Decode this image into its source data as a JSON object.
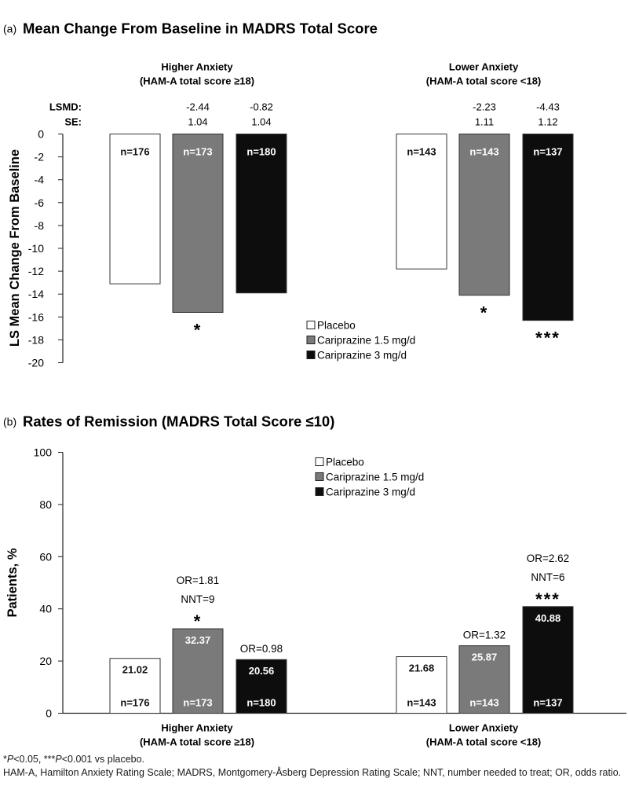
{
  "chart_data": [
    {
      "type": "bar",
      "panel_label": "(a)",
      "title": "Mean Change From Baseline in MADRS Total Score",
      "ylabel": "LS Mean Change From Baseline",
      "xlabel": "",
      "ylim": [
        -20,
        0
      ],
      "yticks": [
        0,
        -2,
        -4,
        -6,
        -8,
        -10,
        -12,
        -14,
        -16,
        -18,
        -20
      ],
      "legend": [
        "Placebo",
        "Cariprazine 1.5 mg/d",
        "Cariprazine 3 mg/d"
      ],
      "row_labels": {
        "lsmd": "LSMD:",
        "se": "SE:"
      },
      "groups": [
        {
          "label_line1": "Higher Anxiety",
          "label_line2": "(HAM-A total score ≥18)",
          "bars": [
            {
              "series": "Placebo",
              "value": -13.1,
              "n": "n=176",
              "sig": ""
            },
            {
              "series": "Cariprazine 1.5 mg/d",
              "value": -15.6,
              "n": "n=173",
              "sig": "*",
              "lsmd": "-2.44",
              "se": "1.04"
            },
            {
              "series": "Cariprazine 3 mg/d",
              "value": -13.9,
              "n": "n=180",
              "sig": "",
              "lsmd": "-0.82",
              "se": "1.04"
            }
          ]
        },
        {
          "label_line1": "Lower Anxiety",
          "label_line2": "(HAM-A total score <18)",
          "bars": [
            {
              "series": "Placebo",
              "value": -11.8,
              "n": "n=143",
              "sig": ""
            },
            {
              "series": "Cariprazine 1.5 mg/d",
              "value": -14.1,
              "n": "n=143",
              "sig": "*",
              "lsmd": "-2.23",
              "se": "1.11"
            },
            {
              "series": "Cariprazine 3 mg/d",
              "value": -16.3,
              "n": "n=137",
              "sig": "***",
              "lsmd": "-4.43",
              "se": "1.12"
            }
          ]
        }
      ]
    },
    {
      "type": "bar",
      "panel_label": "(b)",
      "title": "Rates of Remission (MADRS Total Score ≤10)",
      "ylabel": "Patients, %",
      "xlabel": "",
      "ylim": [
        0,
        100
      ],
      "yticks": [
        0,
        20,
        40,
        60,
        80,
        100
      ],
      "legend": [
        "Placebo",
        "Cariprazine 1.5 mg/d",
        "Cariprazine 3 mg/d"
      ],
      "groups": [
        {
          "label_line1": "Higher Anxiety",
          "label_line2": "(HAM-A total score ≥18)",
          "bars": [
            {
              "series": "Placebo",
              "value": 21.02,
              "value_label": "21.02",
              "n": "n=176",
              "annotations": [],
              "sig": ""
            },
            {
              "series": "Cariprazine 1.5 mg/d",
              "value": 32.37,
              "value_label": "32.37",
              "n": "n=173",
              "annotations": [
                "OR=1.81",
                "NNT=9"
              ],
              "sig": "*"
            },
            {
              "series": "Cariprazine 3 mg/d",
              "value": 20.56,
              "value_label": "20.56",
              "n": "n=180",
              "annotations": [
                "OR=0.98"
              ],
              "sig": ""
            }
          ]
        },
        {
          "label_line1": "Lower Anxiety",
          "label_line2": "(HAM-A total score <18)",
          "bars": [
            {
              "series": "Placebo",
              "value": 21.68,
              "value_label": "21.68",
              "n": "n=143",
              "annotations": [],
              "sig": ""
            },
            {
              "series": "Cariprazine 1.5 mg/d",
              "value": 25.87,
              "value_label": "25.87",
              "n": "n=143",
              "annotations": [
                "OR=1.32"
              ],
              "sig": ""
            },
            {
              "series": "Cariprazine 3 mg/d",
              "value": 40.88,
              "value_label": "40.88",
              "n": "n=137",
              "annotations": [
                "OR=2.62",
                "NNT=6"
              ],
              "sig": "***"
            }
          ]
        }
      ]
    }
  ],
  "series_colors": {
    "Placebo": "#ffffff",
    "Cariprazine 1.5 mg/d": "#7a7a7a",
    "Cariprazine 3 mg/d": "#0d0d0d"
  },
  "footnotes": {
    "sig_prefix1": "*",
    "p_letter1": "P",
    "sig_text1": "<0.05, ***",
    "p_letter2": "P",
    "sig_text2": "<0.001 vs placebo.",
    "abbreviations": "HAM-A, Hamilton Anxiety Rating Scale; MADRS, Montgomery-Åsberg Depression Rating Scale; NNT, number needed to treat; OR, odds ratio."
  }
}
